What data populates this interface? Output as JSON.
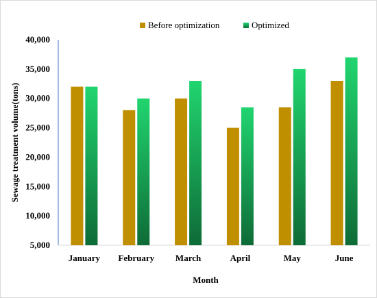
{
  "chart_data": {
    "type": "bar",
    "categories": [
      "January",
      "February",
      "March",
      "April",
      "May",
      "June"
    ],
    "series": [
      {
        "name": "Before optimization",
        "values": [
          32000,
          28000,
          30000,
          25000,
          28500,
          33000
        ],
        "color": "#bf8f00"
      },
      {
        "name": "Optimized",
        "values": [
          32000,
          30000,
          33000,
          28500,
          35000,
          37000
        ],
        "color_top": "#21d56f",
        "color_bottom": "#0e6b37"
      }
    ],
    "xlabel": "Month",
    "ylabel": "Sewage treatment volume(tons)",
    "ylim": [
      5000,
      40000
    ],
    "yticks": [
      5000,
      10000,
      15000,
      20000,
      25000,
      30000,
      35000,
      40000
    ],
    "ytick_labels": [
      "5,000",
      "10,000",
      "15,000",
      "20,000",
      "25,000",
      "30,000",
      "35,000",
      "40,000"
    ],
    "grid": false,
    "legend": "top-center"
  }
}
